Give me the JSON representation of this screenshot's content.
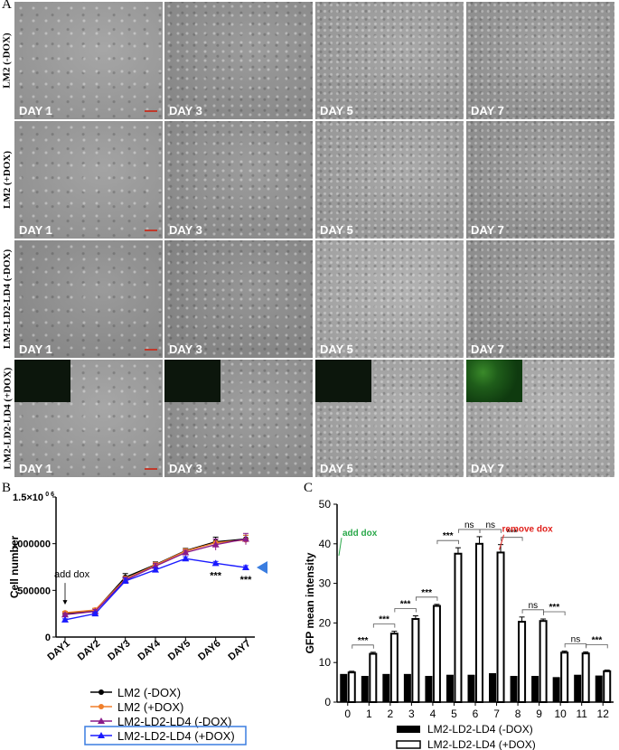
{
  "panel_a": {
    "letter": "A",
    "rows": [
      {
        "label": "LM2 (-DOX)",
        "days": [
          "DAY 1",
          "DAY 3",
          "DAY 5",
          "DAY 7"
        ],
        "insets": [],
        "scalebar": true
      },
      {
        "label": "LM2 (+DOX)",
        "days": [
          "DAY 1",
          "DAY 3",
          "DAY 5",
          "DAY 7"
        ],
        "insets": [],
        "scalebar": true
      },
      {
        "label": "LM2-LD2-LD4 (-DOX)",
        "days": [
          "DAY 1",
          "DAY 3",
          "DAY 5",
          "DAY 7"
        ],
        "insets": [],
        "scalebar": true
      },
      {
        "label": "LM2-LD2-LD4 (+DOX)",
        "days": [
          "DAY 1",
          "DAY 3",
          "DAY 5",
          "DAY 7"
        ],
        "insets": [
          "dim",
          "dim",
          "dim",
          "bright"
        ],
        "scalebar": true
      }
    ]
  },
  "chart_data": [
    {
      "panel": "B",
      "type": "line",
      "ylabel": "Cell number",
      "xlabel": "",
      "categories": [
        "DAY1",
        "DAY2",
        "DAY3",
        "DAY4",
        "DAY5",
        "DAY6",
        "DAY7"
      ],
      "ylim": [
        0,
        1500000
      ],
      "yticks": [
        "0",
        "500000",
        "1000000"
      ],
      "ytop_label": "1.5×10",
      "ytop_sup": "0 6",
      "series": [
        {
          "name": "LM2 (-DOX)",
          "color": "#000000",
          "marker": "circle",
          "values": [
            250000,
            285000,
            640000,
            775000,
            925000,
            1020000,
            1050000
          ],
          "err": [
            15000,
            20000,
            40000,
            30000,
            25000,
            50000,
            40000
          ]
        },
        {
          "name": "LM2 (+DOX)",
          "color": "#f07f2a",
          "marker": "circle",
          "values": [
            260000,
            290000,
            620000,
            770000,
            920000,
            1010000,
            1040000
          ],
          "err": [
            15000,
            20000,
            30000,
            30000,
            25000,
            40000,
            50000
          ]
        },
        {
          "name": "LM2-LD2-LD4 (-DOX)",
          "color": "#8a1c8a",
          "marker": "triangle",
          "values": [
            240000,
            275000,
            610000,
            760000,
            905000,
            990000,
            1050000
          ],
          "err": [
            15000,
            20000,
            30000,
            30000,
            25000,
            60000,
            60000
          ]
        },
        {
          "name": "LM2-LD2-LD4 (+DOX)",
          "color": "#1a1aff",
          "marker": "triangle",
          "values": [
            185000,
            250000,
            600000,
            720000,
            840000,
            790000,
            745000
          ],
          "err": [
            10000,
            15000,
            30000,
            25000,
            20000,
            20000,
            20000
          ]
        }
      ],
      "annotations": {
        "add_dox": "add dox",
        "stars_day6": "***",
        "stars_day7": "***"
      },
      "highlight_series": "LM2-LD2-LD4 (+DOX)"
    },
    {
      "panel": "C",
      "type": "bar",
      "ylabel": "GFP mean intensity",
      "xlabel": "",
      "categories": [
        "0",
        "1",
        "2",
        "3",
        "4",
        "5",
        "6",
        "7",
        "8",
        "9",
        "10",
        "11",
        "12"
      ],
      "ylim": [
        0,
        50
      ],
      "yticks": [
        "0",
        "10",
        "20",
        "30",
        "40",
        "50"
      ],
      "series": [
        {
          "name": "LM2-LD2-LD4 (-DOX)",
          "fill": "#000000",
          "values": [
            7.0,
            6.5,
            7.0,
            7.0,
            6.5,
            6.8,
            6.8,
            7.2,
            6.5,
            6.5,
            6.2,
            6.8,
            6.6
          ]
        },
        {
          "name": "LM2-LD2-LD4 (+DOX)",
          "fill": "#ffffff",
          "values": [
            7.5,
            12.2,
            17.3,
            21.0,
            24.3,
            37.5,
            40.0,
            37.8,
            20.3,
            20.5,
            12.5,
            12.3,
            7.8
          ],
          "err": [
            0.3,
            0.4,
            0.6,
            0.8,
            0.4,
            1.5,
            1.8,
            2.0,
            1.2,
            0.5,
            0.4,
            0.4,
            0.3
          ]
        }
      ],
      "annotations": {
        "add_dox": "add dox",
        "remove_dox": "remove dox",
        "add_dox_color": "#2aa84a",
        "remove_dox_color": "#e0201b"
      },
      "comparisons": [
        {
          "from": "0",
          "to": "1",
          "label": "***"
        },
        {
          "from": "1",
          "to": "2",
          "label": "***"
        },
        {
          "from": "2",
          "to": "3",
          "label": "***"
        },
        {
          "from": "3",
          "to": "4",
          "label": "***"
        },
        {
          "from": "4",
          "to": "5",
          "label": "***"
        },
        {
          "from": "5",
          "to": "6",
          "label": "ns"
        },
        {
          "from": "6",
          "to": "7",
          "label": "ns"
        },
        {
          "from": "7",
          "to": "8",
          "label": "***"
        },
        {
          "from": "8",
          "to": "9",
          "label": "ns"
        },
        {
          "from": "9",
          "to": "10",
          "label": "***"
        },
        {
          "from": "10",
          "to": "11",
          "label": "ns"
        },
        {
          "from": "11",
          "to": "12",
          "label": "***"
        }
      ]
    }
  ]
}
